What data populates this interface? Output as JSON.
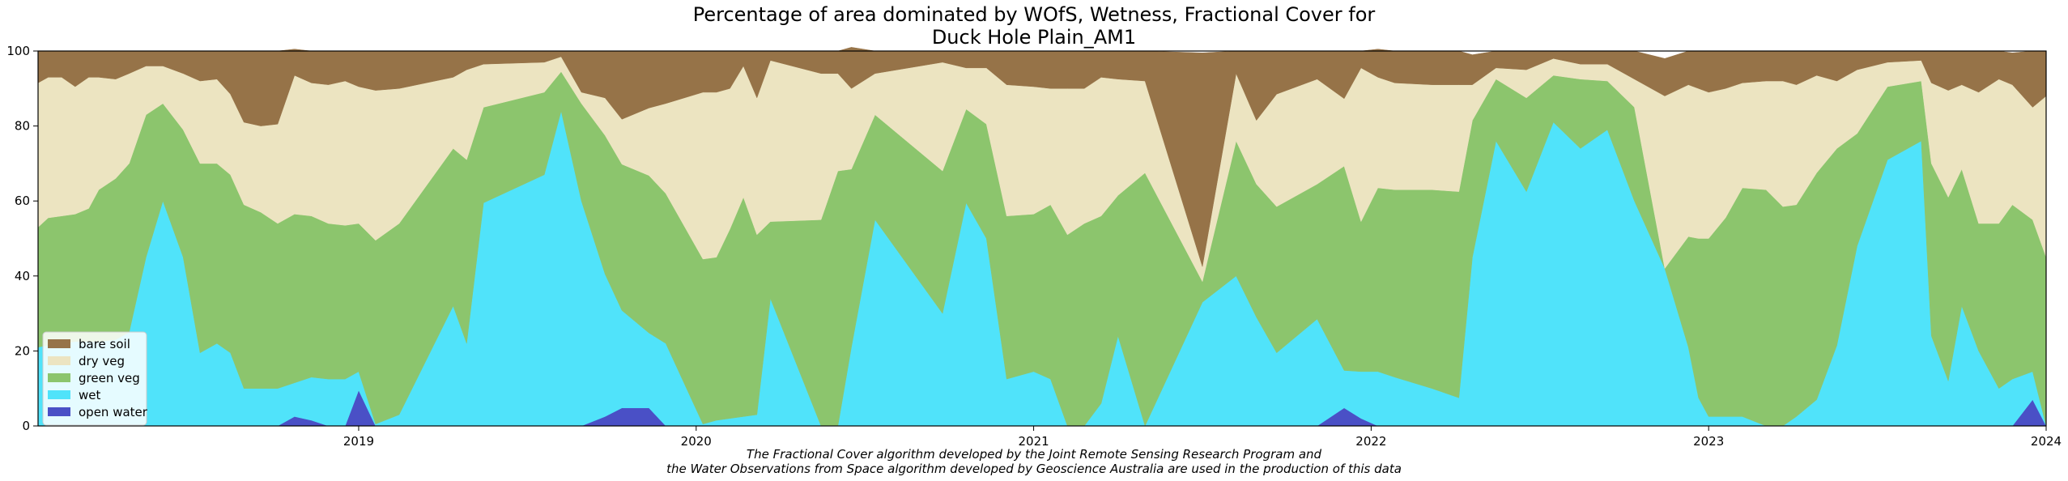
{
  "title_line1": "Percentage of area dominated by WOfS, Wetness, Fractional Cover for",
  "title_line2": "Duck Hole Plain_AM1",
  "footnote_line1": "The Fractional Cover algorithm developed by the Joint Remote Sensing Research Program and",
  "footnote_line2": "the Water Observations from Space algorithm developed by Geoscience Australia are used in the production of this data",
  "colors": {
    "bare_soil": "#967348",
    "dry_veg": "#ece4c1",
    "green_veg": "#8cc56d",
    "wet": "#50e3fa",
    "open_water": "#4a50c6"
  },
  "chart_data": {
    "type": "area",
    "stacked": true,
    "xlim": [
      2018.05,
      2024.0
    ],
    "ylim": [
      0,
      100
    ],
    "yticks": [
      "0",
      "20",
      "40",
      "60",
      "80",
      "100"
    ],
    "xticks": [
      "2019",
      "2020",
      "2021",
      "2022",
      "2023",
      "2024"
    ],
    "legend_position": "lower-left",
    "x": [
      2018.05,
      2018.08,
      2018.12,
      2018.16,
      2018.2,
      2018.23,
      2018.28,
      2018.32,
      2018.37,
      2018.42,
      2018.48,
      2018.53,
      2018.58,
      2018.62,
      2018.66,
      2018.71,
      2018.76,
      2018.81,
      2018.86,
      2018.91,
      2018.96,
      2019.0,
      2019.05,
      2019.12,
      2019.28,
      2019.32,
      2019.37,
      2019.55,
      2019.6,
      2019.66,
      2019.73,
      2019.78,
      2019.86,
      2019.91,
      2020.02,
      2020.06,
      2020.1,
      2020.14,
      2020.18,
      2020.22,
      2020.37,
      2020.42,
      2020.46,
      2020.53,
      2020.73,
      2020.8,
      2020.86,
      2020.92,
      2021.0,
      2021.05,
      2021.1,
      2021.15,
      2021.2,
      2021.25,
      2021.33,
      2021.5,
      2021.6,
      2021.66,
      2021.72,
      2021.84,
      2021.92,
      2021.97,
      2022.02,
      2022.07,
      2022.18,
      2022.26,
      2022.3,
      2022.37,
      2022.46,
      2022.54,
      2022.62,
      2022.7,
      2022.78,
      2022.87,
      2022.94,
      2022.97,
      2023.0,
      2023.05,
      2023.1,
      2023.17,
      2023.22,
      2023.26,
      2023.32,
      2023.38,
      2023.44,
      2023.53,
      2023.63,
      2023.66,
      2023.71,
      2023.75,
      2023.8,
      2023.86,
      2023.9,
      2023.96,
      2024.0
    ],
    "series": [
      {
        "name": "open water",
        "values": [
          0,
          0,
          0,
          0,
          0,
          0,
          0,
          0,
          0,
          0,
          0,
          0,
          0,
          0,
          0,
          0,
          0,
          2.5,
          1.5,
          0,
          0,
          9.5,
          0,
          0,
          0,
          0,
          0,
          0,
          0,
          0,
          2.5,
          4.8,
          4.8,
          0,
          0,
          0,
          0,
          0,
          0,
          0,
          0,
          0,
          0,
          0,
          0,
          0,
          0,
          0,
          0,
          0,
          0,
          0,
          0,
          0,
          0,
          0,
          0,
          0,
          0,
          0,
          4.8,
          2.0,
          0,
          0,
          0,
          0,
          0,
          0,
          0,
          0,
          0,
          0,
          0,
          0,
          0,
          0,
          0,
          0,
          0,
          0,
          0,
          0,
          0,
          0,
          0,
          0,
          0,
          0,
          0,
          0,
          0,
          0,
          0,
          7.0,
          0
        ]
      },
      {
        "name": "wet",
        "values": [
          21.0,
          21.5,
          22.0,
          22.5,
          22.5,
          22.5,
          23.0,
          25.0,
          45.0,
          60.0,
          45.0,
          19.5,
          22.0,
          19.5,
          10.0,
          10.0,
          10.0,
          9.0,
          11.5,
          12.5,
          12.5,
          5.0,
          0.5,
          3.0,
          32.0,
          22.0,
          59.5,
          67.0,
          84.0,
          60.0,
          38.0,
          26.0,
          20.0,
          22.0,
          0.5,
          1.5,
          2.0,
          2.5,
          3.0,
          34.0,
          0,
          0,
          21.0,
          55.0,
          30.0,
          59.5,
          50.0,
          12.5,
          14.5,
          12.5,
          0,
          0,
          6.0,
          24.0,
          0,
          33.0,
          40.0,
          29.0,
          19.5,
          28.5,
          10.0,
          12.5,
          14.5,
          13.0,
          10.0,
          7.5,
          45.0,
          76.0,
          62.5,
          81.0,
          74.0,
          79.0,
          60.0,
          42.0,
          21.0,
          7.5,
          2.5,
          2.5,
          2.5,
          0,
          0,
          2.5,
          7.0,
          21.5,
          48.0,
          71.0,
          76.0,
          24.0,
          12.0,
          32.0,
          20.0,
          10.0,
          12.5,
          7.5,
          0
        ]
      },
      {
        "name": "green veg",
        "values": [
          32.0,
          34.0,
          34.0,
          34.0,
          35.5,
          40.5,
          43.0,
          45.0,
          38.0,
          26.0,
          34.0,
          50.5,
          48.0,
          47.5,
          49.0,
          47.0,
          44.0,
          45.0,
          43.0,
          41.5,
          41.0,
          39.5,
          49.0,
          51.0,
          42.0,
          49.0,
          25.5,
          22.0,
          10.5,
          26.0,
          37.0,
          39.0,
          42.0,
          40.0,
          44.0,
          43.5,
          50.5,
          58.5,
          48.0,
          20.5,
          55.0,
          68.0,
          47.5,
          28.0,
          38.0,
          25.0,
          30.5,
          43.5,
          42.0,
          46.5,
          51.0,
          54.0,
          50.0,
          37.5,
          67.5,
          5.5,
          36.0,
          35.5,
          39.0,
          36.0,
          54.5,
          40.0,
          49.0,
          50.0,
          53.0,
          55.0,
          36.5,
          16.5,
          25.0,
          12.5,
          18.5,
          13.0,
          25.0,
          0,
          29.5,
          42.5,
          47.5,
          53.0,
          61.0,
          63.0,
          58.5,
          56.5,
          60.5,
          52.5,
          30.0,
          19.5,
          16.0,
          46.0,
          49.0,
          36.5,
          34.0,
          44.0,
          46.5,
          40.5,
          45.0
        ]
      },
      {
        "name": "dry veg",
        "values": [
          38.5,
          37.5,
          37.0,
          34.0,
          35.0,
          30.0,
          26.5,
          24.0,
          13.0,
          10.0,
          15.0,
          22.0,
          22.5,
          21.5,
          22.0,
          23.0,
          26.5,
          37.0,
          35.5,
          37.0,
          38.5,
          36.5,
          40.0,
          36.0,
          19.0,
          24.0,
          11.5,
          8.0,
          4.0,
          3.0,
          10.0,
          12.0,
          18.0,
          24.0,
          44.5,
          44.0,
          37.5,
          35.0,
          36.5,
          43.0,
          39.0,
          26.0,
          21.5,
          11.0,
          29.0,
          11.0,
          15.0,
          35.0,
          34.0,
          31.0,
          39.0,
          36.0,
          37.0,
          31.0,
          24.5,
          4.0,
          18.0,
          17.0,
          30.0,
          28.0,
          18.0,
          41.0,
          29.5,
          28.5,
          28.0,
          28.5,
          9.5,
          3.0,
          7.5,
          4.5,
          4.0,
          4.5,
          7.5,
          46.0,
          40.5,
          40.0,
          39.0,
          34.5,
          28.0,
          29.0,
          33.5,
          32.0,
          26.0,
          18.0,
          17.0,
          6.5,
          5.5,
          21.5,
          28.5,
          22.5,
          35.0,
          38.5,
          32.0,
          30.0,
          43.0
        ]
      },
      {
        "name": "bare soil",
        "values": [
          8.5,
          7.0,
          7.0,
          9.5,
          7.0,
          7.0,
          7.5,
          6.0,
          4.0,
          4.0,
          6.0,
          8.0,
          7.5,
          11.5,
          19.0,
          20.0,
          19.5,
          7.0,
          8.5,
          9.0,
          8.0,
          9.5,
          10.5,
          10.0,
          7.0,
          5.0,
          3.5,
          3.0,
          1.5,
          11.0,
          12.5,
          18.2,
          15.2,
          14.0,
          11.0,
          11.0,
          10.0,
          4.0,
          12.5,
          2.5,
          6.0,
          6.0,
          11.0,
          6.0,
          3.0,
          4.5,
          4.5,
          9.0,
          9.5,
          10.0,
          10.0,
          10.0,
          7.0,
          7.5,
          8.0,
          57.0,
          6.0,
          18.5,
          11.5,
          7.5,
          12.7,
          4.5,
          7.5,
          8.5,
          9.0,
          9.0,
          8.0,
          4.5,
          5.0,
          2.0,
          3.5,
          3.5,
          7.5,
          10.0,
          9.0,
          10.0,
          11.0,
          10.0,
          8.5,
          8.0,
          8.0,
          9.0,
          6.5,
          8.0,
          5.0,
          3.0,
          2.5,
          8.5,
          10.5,
          9.0,
          11.0,
          7.5,
          8.5,
          15.0,
          12.0
        ]
      }
    ],
    "legend": [
      "bare soil",
      "dry veg",
      "green veg",
      "wet",
      "open water"
    ]
  }
}
